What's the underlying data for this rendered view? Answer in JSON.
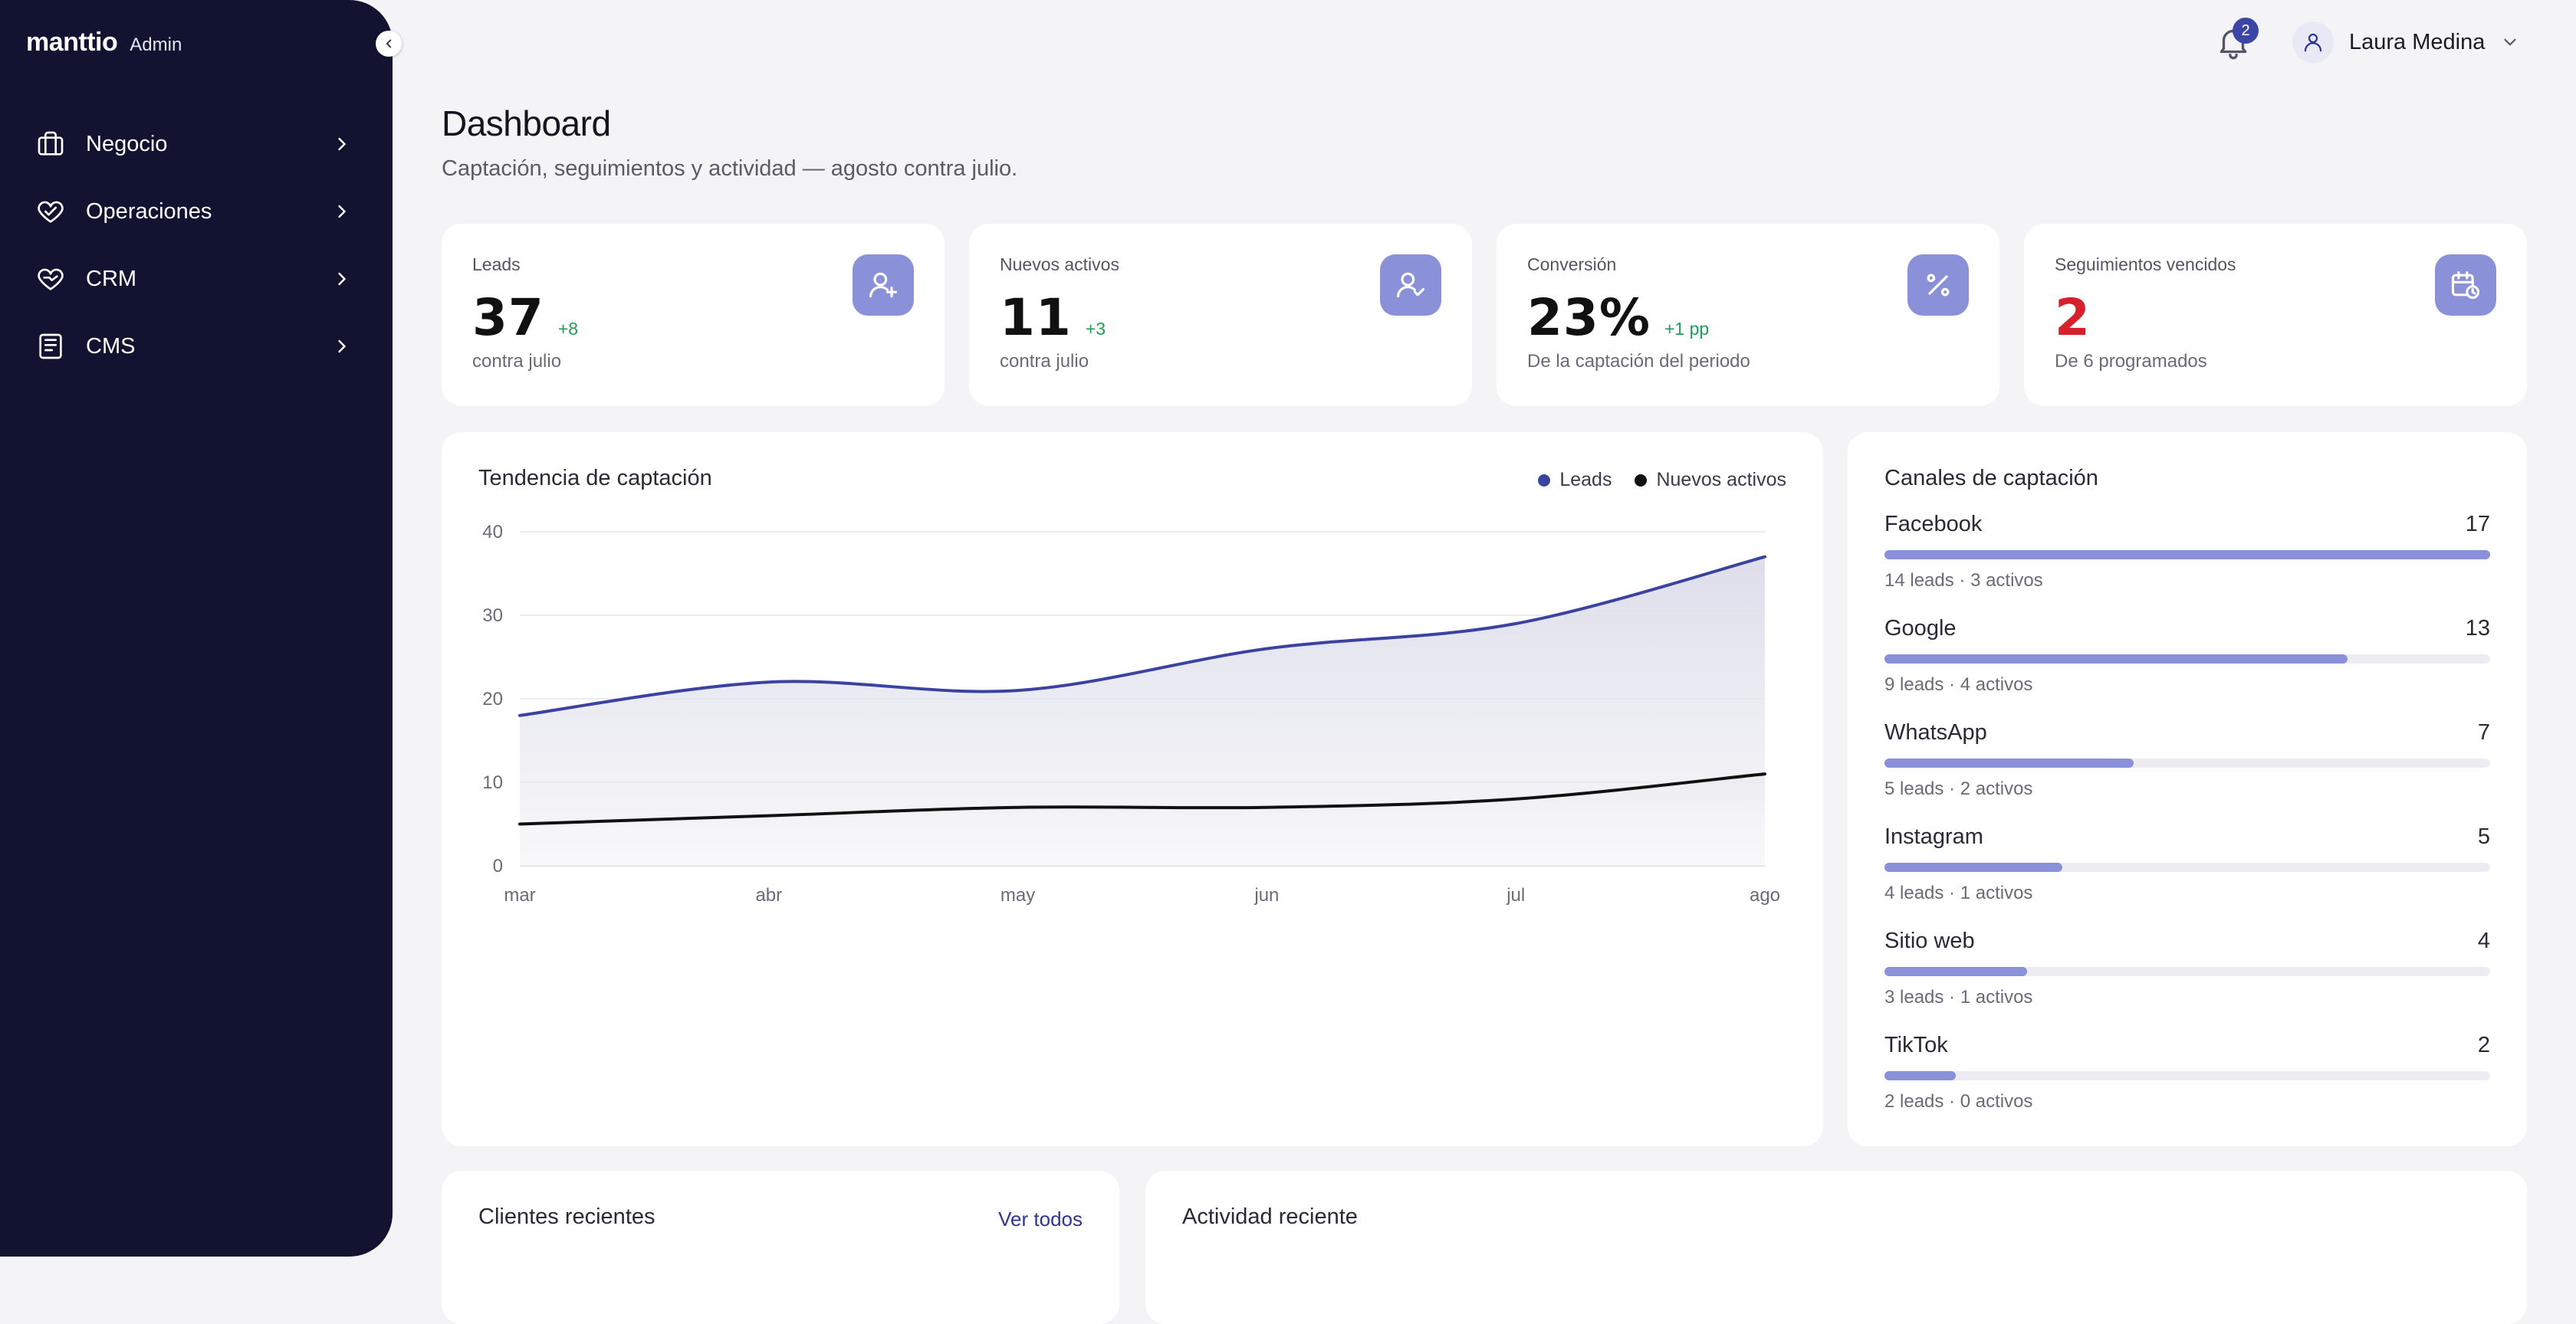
{
  "sidebar": {
    "brand": "manttio",
    "role": "Admin",
    "items": [
      {
        "label": "Negocio",
        "icon": "briefcase-icon"
      },
      {
        "label": "Operaciones",
        "icon": "heart-handshake-icon"
      },
      {
        "label": "CRM",
        "icon": "handshake-heart-icon"
      },
      {
        "label": "CMS",
        "icon": "newspaper-icon"
      }
    ]
  },
  "topbar": {
    "notifications_count": "2",
    "user_name": "Laura Medina"
  },
  "header": {
    "title": "Dashboard",
    "subtitle": "Captación, seguimientos y actividad — agosto contra julio."
  },
  "kpis": [
    {
      "label": "Leads",
      "value": "37",
      "delta": "+8",
      "foot": "contra julio",
      "icon": "user-plus-icon"
    },
    {
      "label": "Nuevos activos",
      "value": "11",
      "delta": "+3",
      "foot": "contra julio",
      "icon": "user-check-icon"
    },
    {
      "label": "Conversión",
      "value": "23%",
      "delta": "+1 pp",
      "foot": "De la captación del periodo",
      "icon": "percent-icon"
    },
    {
      "label": "Seguimientos vencidos",
      "value": "2",
      "delta": "",
      "foot": "De 6 programados",
      "icon": "calendar-clock-icon"
    }
  ],
  "trend": {
    "title": "Tendencia de captación",
    "chart_data": {
      "type": "area",
      "title": "Tendencia de captación",
      "categories": [
        "mar",
        "abr",
        "may",
        "jun",
        "jul",
        "ago"
      ],
      "ylim": [
        0,
        40
      ],
      "yticks": [
        "0",
        "10",
        "20",
        "30",
        "40"
      ],
      "grid": true,
      "legend": "top-right",
      "series": [
        {
          "name": "Leads",
          "values": [
            18,
            22,
            21,
            26,
            29,
            37
          ],
          "color": "#3a43a0"
        },
        {
          "name": "Nuevos activos",
          "values": [
            5,
            6,
            7,
            7,
            8,
            11
          ],
          "color": "#111111"
        }
      ]
    }
  },
  "channels": {
    "title": "Canales de captación",
    "max": 17,
    "items": [
      {
        "name": "Facebook",
        "total": "17",
        "value": 17,
        "detail": "14 leads · 3 activos"
      },
      {
        "name": "Google",
        "total": "13",
        "value": 13,
        "detail": "9 leads · 4 activos"
      },
      {
        "name": "WhatsApp",
        "total": "7",
        "value": 7,
        "detail": "5 leads · 2 activos"
      },
      {
        "name": "Instagram",
        "total": "5",
        "value": 5,
        "detail": "4 leads · 1 activos"
      },
      {
        "name": "Sitio web",
        "total": "4",
        "value": 4,
        "detail": "3 leads · 1 activos"
      },
      {
        "name": "TikTok",
        "total": "2",
        "value": 2,
        "detail": "2 leads · 0 activos"
      }
    ]
  },
  "recent_clients": {
    "title": "Clientes recientes",
    "view_all": "Ver todos"
  },
  "recent_activity": {
    "title": "Actividad reciente"
  },
  "colors": {
    "sidebar": "#121331",
    "accent": "#8b91d8",
    "leads_line": "#3a43a0",
    "positive": "#1f9d57",
    "danger": "#d6202a"
  }
}
